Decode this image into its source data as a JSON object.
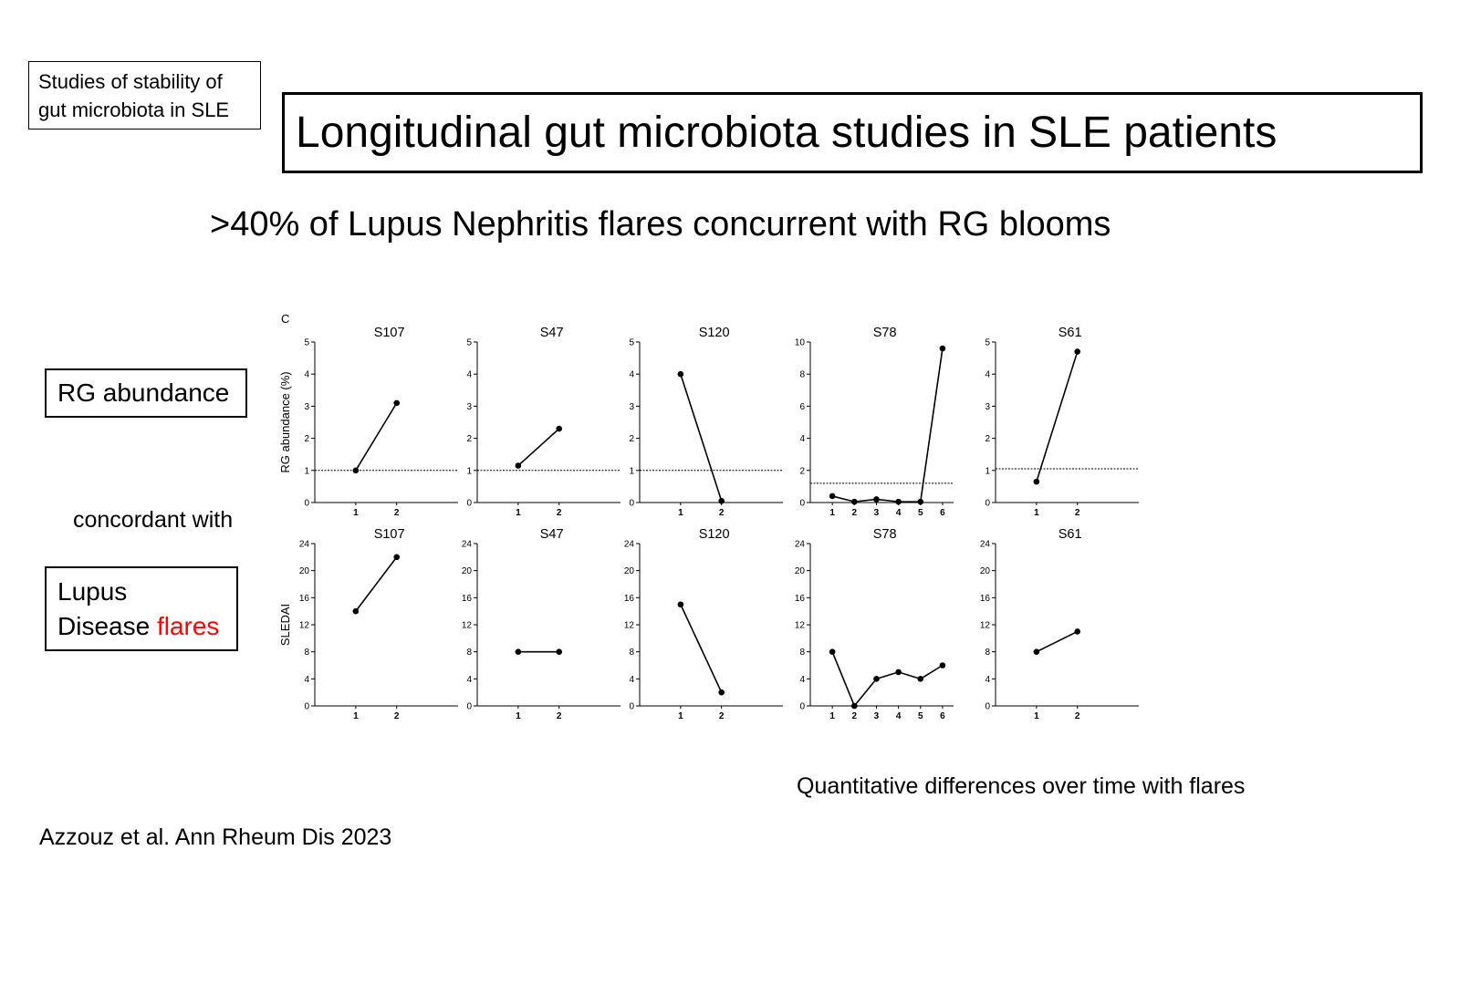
{
  "corner_label": {
    "line1": "Studies of stability of",
    "line2": "gut microbiota in SLE"
  },
  "title": "Longitudinal gut microbiota studies in SLE patients",
  "subtitle": ">40% of Lupus Nephritis flares concurrent with RG blooms",
  "rg_label": "RG abundance",
  "concordant": "concordant with",
  "lupus_label": {
    "line1": "Lupus",
    "line2_prefix": "Disease ",
    "line2_highlight": "flares",
    "highlight_color": "#ff0000"
  },
  "quantitative_note": "Quantitative differences over time with flares",
  "citation": "Azzouz et al. Ann Rheum Dis 2023",
  "panel_letter": "C",
  "chart_data": [
    {
      "type": "line",
      "row": "top",
      "title": "S107",
      "ylabel": "RG  abundance (%)",
      "ylim": [
        0,
        5
      ],
      "yticks": [
        0,
        1,
        2,
        3,
        4,
        5
      ],
      "x": [
        1,
        2
      ],
      "values": [
        1.0,
        3.1
      ],
      "threshold": 1.0,
      "xmax": 3
    },
    {
      "type": "line",
      "row": "top",
      "title": "S47",
      "ylabel": "",
      "ylim": [
        0,
        5
      ],
      "yticks": [
        0,
        1,
        2,
        3,
        4,
        5
      ],
      "x": [
        1,
        2
      ],
      "values": [
        1.15,
        2.3
      ],
      "threshold": 1.0,
      "xmax": 3
    },
    {
      "type": "line",
      "row": "top",
      "title": "S120",
      "ylabel": "",
      "ylim": [
        0,
        5
      ],
      "yticks": [
        0,
        1,
        2,
        3,
        4,
        5
      ],
      "x": [
        1,
        2
      ],
      "values": [
        4.0,
        0.05
      ],
      "threshold": 1.0,
      "xmax": 3
    },
    {
      "type": "line",
      "row": "top",
      "title": "S78",
      "ylabel": "",
      "ylim": [
        0,
        10
      ],
      "yticks": [
        0,
        2,
        4,
        6,
        8,
        10
      ],
      "x": [
        1,
        2,
        3,
        4,
        5,
        6
      ],
      "values": [
        0.4,
        0.05,
        0.2,
        0.05,
        0.05,
        9.6
      ],
      "threshold": 1.2,
      "xmax": 6
    },
    {
      "type": "line",
      "row": "top",
      "title": "S61",
      "ylabel": "",
      "ylim": [
        0,
        5
      ],
      "yticks": [
        0,
        1,
        2,
        3,
        4,
        5
      ],
      "x": [
        1,
        2
      ],
      "values": [
        0.65,
        4.7
      ],
      "threshold": 1.05,
      "xmax": 3
    },
    {
      "type": "line",
      "row": "bottom",
      "title": "S107",
      "ylabel": "SLEDAI",
      "ylim": [
        0,
        24
      ],
      "yticks": [
        0,
        4,
        8,
        12,
        16,
        20,
        24
      ],
      "x": [
        1,
        2
      ],
      "values": [
        14,
        22
      ],
      "threshold": null,
      "xmax": 3
    },
    {
      "type": "line",
      "row": "bottom",
      "title": "S47",
      "ylabel": "",
      "ylim": [
        0,
        24
      ],
      "yticks": [
        0,
        4,
        8,
        12,
        16,
        20,
        24
      ],
      "x": [
        1,
        2
      ],
      "values": [
        8,
        8
      ],
      "threshold": null,
      "xmax": 3
    },
    {
      "type": "line",
      "row": "bottom",
      "title": "S120",
      "ylabel": "",
      "ylim": [
        0,
        24
      ],
      "yticks": [
        0,
        4,
        8,
        12,
        16,
        20,
        24
      ],
      "x": [
        1,
        2
      ],
      "values": [
        15,
        2
      ],
      "threshold": null,
      "xmax": 3
    },
    {
      "type": "line",
      "row": "bottom",
      "title": "S78",
      "ylabel": "",
      "ylim": [
        0,
        24
      ],
      "yticks": [
        0,
        4,
        8,
        12,
        16,
        20,
        24
      ],
      "x": [
        1,
        2,
        3,
        4,
        5,
        6
      ],
      "values": [
        8,
        0,
        4,
        5,
        4,
        6
      ],
      "threshold": null,
      "xmax": 6
    },
    {
      "type": "line",
      "row": "bottom",
      "title": "S61",
      "ylabel": "",
      "ylim": [
        0,
        24
      ],
      "yticks": [
        0,
        4,
        8,
        12,
        16,
        20,
        24
      ],
      "x": [
        1,
        2
      ],
      "values": [
        8,
        11
      ],
      "threshold": null,
      "xmax": 3
    }
  ]
}
